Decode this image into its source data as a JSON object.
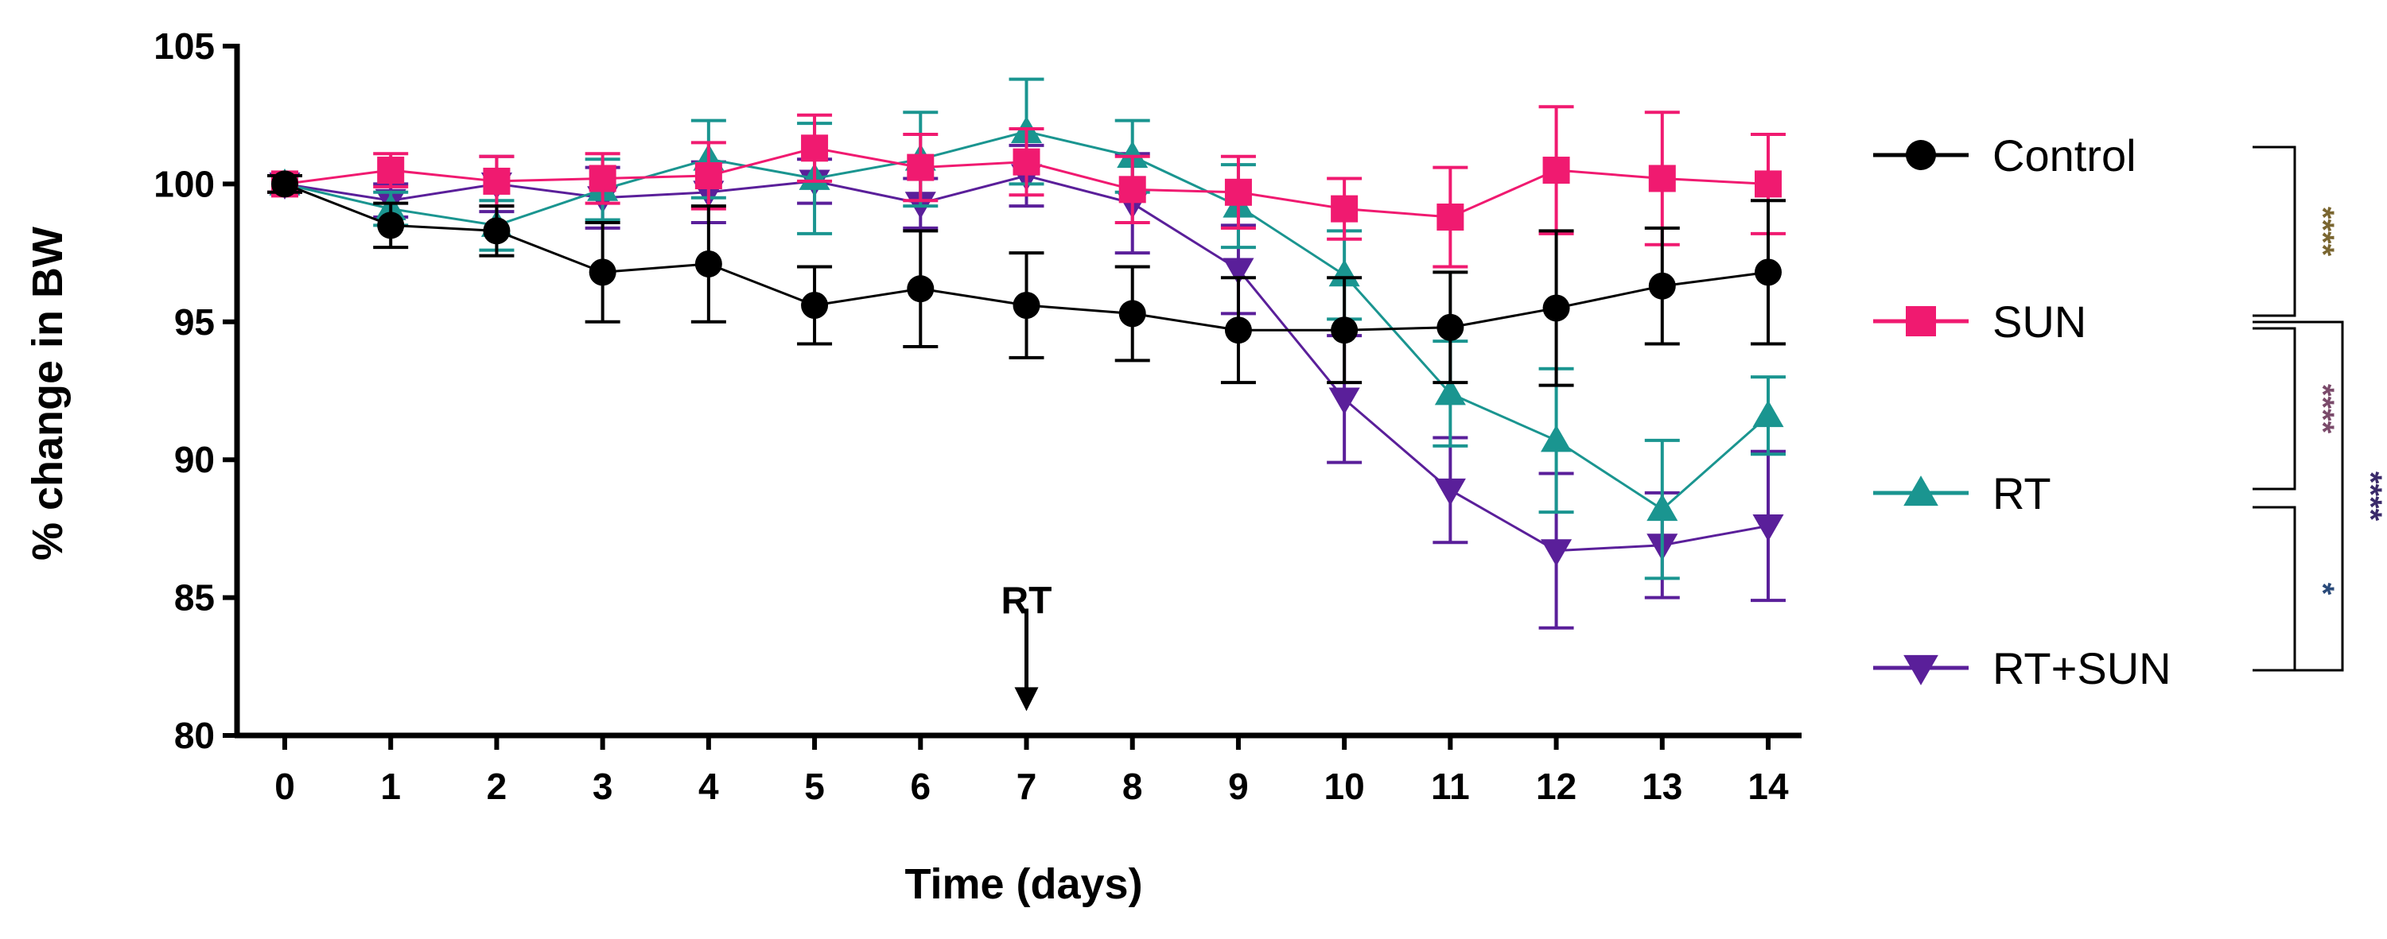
{
  "chart_data": {
    "type": "line",
    "title": "",
    "xlabel": "Time (days)",
    "ylabel": "% change in BW",
    "xlim": [
      0,
      14
    ],
    "ylim": [
      80,
      105
    ],
    "x": [
      0,
      1,
      2,
      3,
      4,
      5,
      6,
      7,
      8,
      9,
      10,
      11,
      12,
      13,
      14
    ],
    "x_tick_labels": [
      "0",
      "1",
      "2",
      "3",
      "4",
      "5",
      "6",
      "7",
      "8",
      "9",
      "10",
      "11",
      "12",
      "13",
      "14"
    ],
    "y_ticks": [
      80,
      85,
      90,
      95,
      100,
      105
    ],
    "y_tick_labels": [
      "80",
      "85",
      "90",
      "95",
      "100",
      "105"
    ],
    "grid": false,
    "legend_position": "right",
    "series": [
      {
        "name": "Control",
        "color": "#000000",
        "marker": "circle",
        "values": [
          100,
          98.5,
          98.3,
          96.8,
          97.1,
          95.6,
          96.2,
          95.6,
          95.3,
          94.7,
          94.7,
          94.8,
          95.5,
          96.3,
          96.8
        ],
        "errors": [
          0.3,
          0.8,
          0.9,
          1.8,
          2.1,
          1.4,
          2.1,
          1.9,
          1.7,
          1.9,
          1.9,
          2.0,
          2.8,
          2.1,
          2.6
        ]
      },
      {
        "name": "SUN",
        "color": "#f01a70",
        "marker": "square",
        "values": [
          100,
          100.5,
          100.1,
          100.2,
          100.3,
          101.3,
          100.6,
          100.8,
          99.8,
          99.7,
          99.1,
          98.8,
          100.5,
          100.2,
          100
        ],
        "errors": [
          0.3,
          0.6,
          0.9,
          0.9,
          1.2,
          1.2,
          1.2,
          1.2,
          1.2,
          1.3,
          1.1,
          1.8,
          2.3,
          2.4,
          1.8
        ]
      },
      {
        "name": "RT",
        "color": "#1a9590",
        "marker": "triangle-up",
        "values": [
          100,
          99.1,
          98.5,
          99.8,
          100.9,
          100.2,
          100.9,
          101.9,
          101.0,
          99.2,
          96.7,
          92.4,
          90.7,
          88.2,
          91.6
        ],
        "errors": [
          0.3,
          0.6,
          0.9,
          1.1,
          1.4,
          2.0,
          1.7,
          1.9,
          1.3,
          1.5,
          1.6,
          1.9,
          2.6,
          2.5,
          1.4
        ]
      },
      {
        "name": "RT+SUN",
        "color": "#5a1f9a",
        "marker": "triangle-down",
        "values": [
          100,
          99.4,
          100.0,
          99.5,
          99.7,
          100.1,
          99.3,
          100.3,
          99.3,
          96.9,
          92.2,
          88.9,
          86.7,
          86.9,
          87.6
        ],
        "errors": [
          0.3,
          0.6,
          1.0,
          1.1,
          1.1,
          0.8,
          0.9,
          1.1,
          1.8,
          1.6,
          2.3,
          1.9,
          2.8,
          1.9,
          2.7
        ]
      }
    ],
    "annotations": [
      {
        "label": "RT",
        "x": 7,
        "type": "arrow-down"
      }
    ],
    "significance": [
      {
        "from": "Control",
        "to": "SUN",
        "label": "****",
        "color": "#7a6630"
      },
      {
        "from": "SUN",
        "to": "RT",
        "label": "****",
        "color": "#7a4a6a"
      },
      {
        "from": "RT",
        "to": "RT+SUN",
        "label": "*",
        "color": "#2a4a7a"
      },
      {
        "from": "SUN",
        "to": "RT+SUN",
        "label": "****",
        "color": "#3a2a6a"
      }
    ]
  }
}
